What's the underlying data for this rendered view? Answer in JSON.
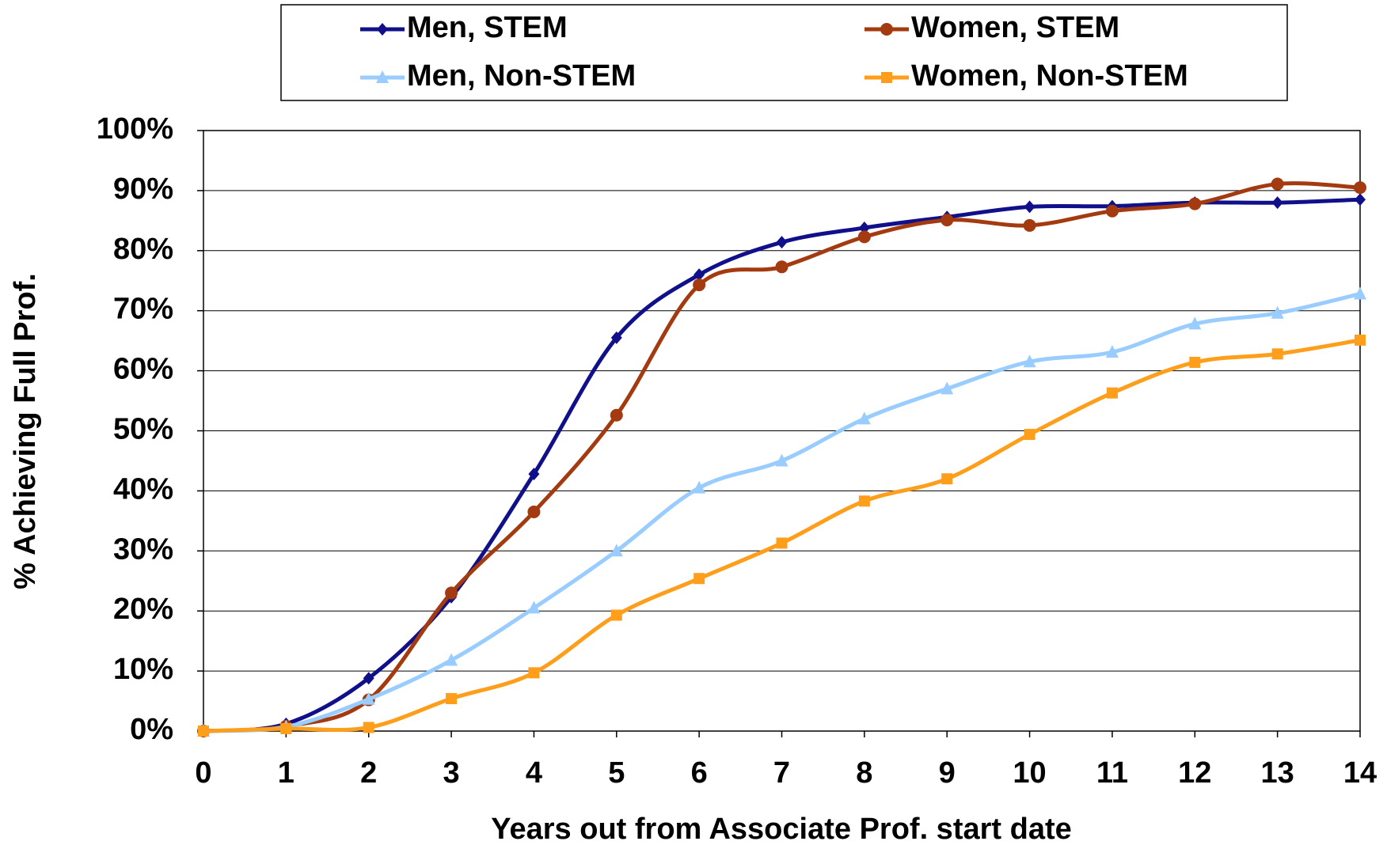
{
  "chart_data": {
    "type": "line",
    "xlabel": "Years out from Associate Prof. start date",
    "ylabel": "% Achieving Full Prof.",
    "x": [
      0,
      1,
      2,
      3,
      4,
      5,
      6,
      7,
      8,
      9,
      10,
      11,
      12,
      13,
      14
    ],
    "xlim": [
      0,
      14
    ],
    "xticks": [
      0,
      1,
      2,
      3,
      4,
      5,
      6,
      7,
      8,
      9,
      10,
      11,
      12,
      13,
      14
    ],
    "ylim": [
      0,
      100
    ],
    "yticks": [
      {
        "value": 0,
        "label": "0%"
      },
      {
        "value": 10,
        "label": "10%"
      },
      {
        "value": 20,
        "label": "20%"
      },
      {
        "value": 30,
        "label": "30%"
      },
      {
        "value": 40,
        "label": "40%"
      },
      {
        "value": 50,
        "label": "50%"
      },
      {
        "value": 60,
        "label": "60%"
      },
      {
        "value": 70,
        "label": "70%"
      },
      {
        "value": 80,
        "label": "80%"
      },
      {
        "value": 90,
        "label": "90%"
      },
      {
        "value": 100,
        "label": "100%"
      }
    ],
    "grid": true,
    "smooth": true,
    "legend": "top",
    "series": [
      {
        "name": "Men, STEM",
        "color": "#10108a",
        "marker": "diamond",
        "values": [
          0,
          1.2,
          8.8,
          22.3,
          42.8,
          65.5,
          76,
          81.4,
          83.8,
          85.6,
          87.3,
          87.4,
          88,
          88,
          88.5
        ]
      },
      {
        "name": "Women, STEM",
        "color": "#a33a10",
        "marker": "circle",
        "values": [
          0,
          0.8,
          5.2,
          23,
          36.5,
          52.6,
          74.3,
          77.3,
          82.3,
          85.1,
          84.2,
          86.6,
          87.8,
          91.1,
          90.5
        ]
      },
      {
        "name": "Men, Non-STEM",
        "color": "#99ccff",
        "marker": "triangle",
        "values": [
          0,
          0.7,
          5.3,
          11.8,
          20.5,
          30,
          40.5,
          45,
          52,
          57,
          61.5,
          63.1,
          67.8,
          69.6,
          72.8
        ]
      },
      {
        "name": "Women, Non-STEM",
        "color": "#ff9e1a",
        "marker": "square",
        "values": [
          0,
          0.4,
          0.6,
          5.4,
          9.7,
          19.3,
          25.4,
          31.3,
          38.3,
          42,
          49.4,
          56.3,
          61.4,
          62.8,
          65.1
        ]
      }
    ]
  }
}
